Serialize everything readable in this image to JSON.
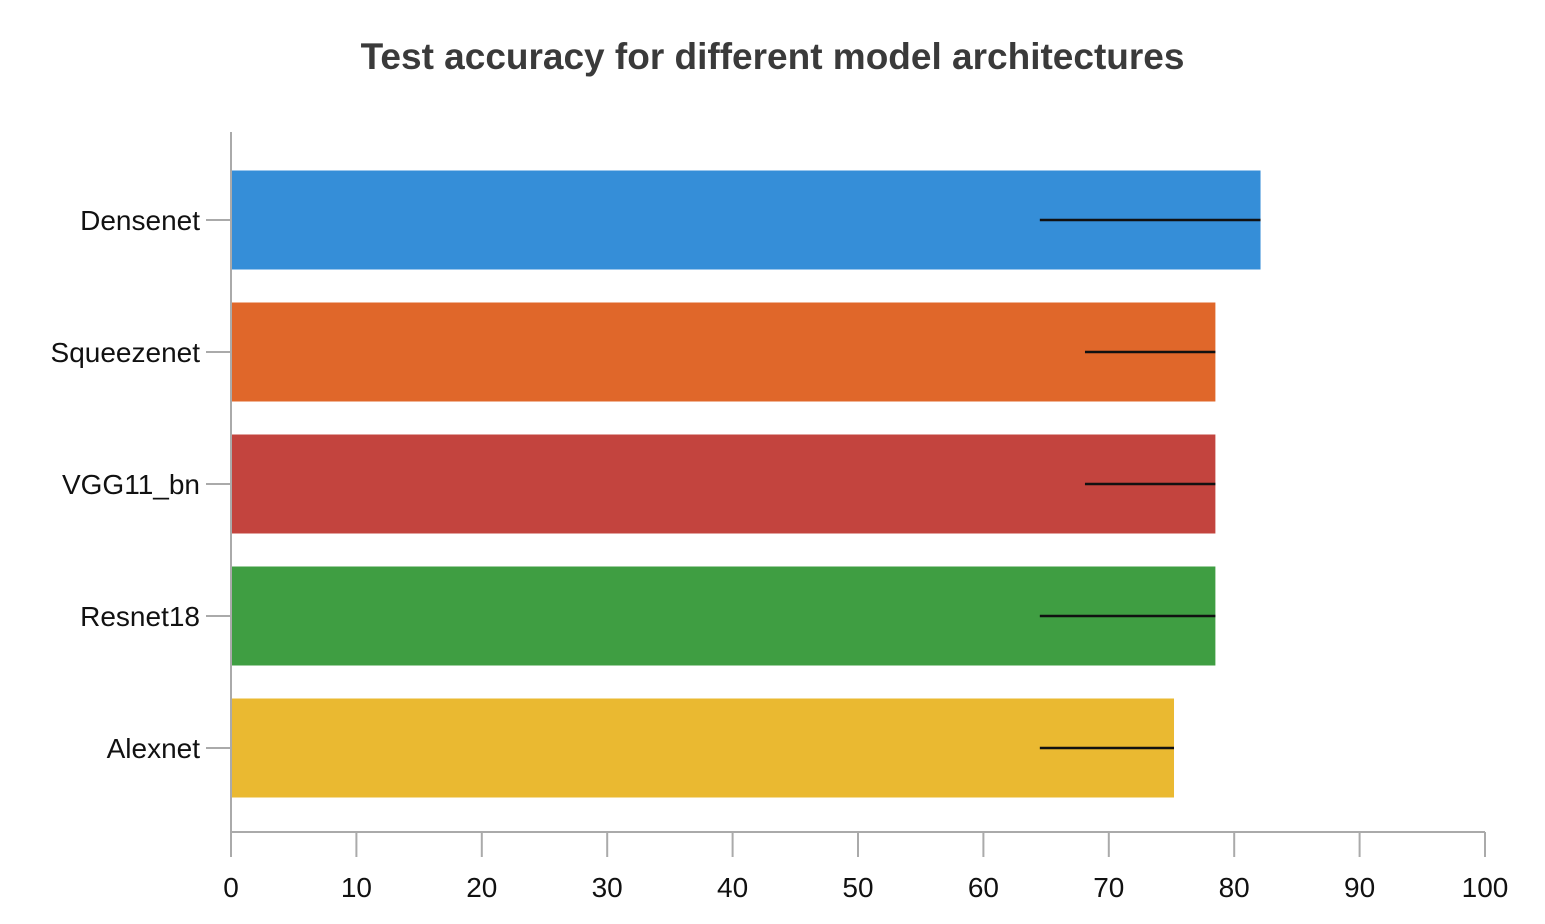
{
  "chart_data": {
    "type": "bar",
    "orientation": "horizontal",
    "title": "Test accuracy for different model architectures",
    "xlabel": "",
    "ylabel": "",
    "categories": [
      "Densenet",
      "Squeezenet",
      "VGG11_bn",
      "Resnet18",
      "Alexnet"
    ],
    "values": [
      82.1,
      78.5,
      78.5,
      78.5,
      75.2
    ],
    "error_bars": [
      {
        "low": 64.5,
        "high": 82.1
      },
      {
        "low": 68.1,
        "high": 78.5
      },
      {
        "low": 68.1,
        "high": 78.5
      },
      {
        "low": 64.5,
        "high": 78.5
      },
      {
        "low": 64.5,
        "high": 75.2
      }
    ],
    "colors": [
      "#358ed8",
      "#e0672a",
      "#c3443e",
      "#3f9e42",
      "#eab931"
    ],
    "xlim": [
      0,
      100
    ],
    "xticks": [
      0,
      10,
      20,
      30,
      40,
      50,
      60,
      70,
      80,
      90,
      100
    ],
    "grid": false,
    "legend": "none"
  }
}
